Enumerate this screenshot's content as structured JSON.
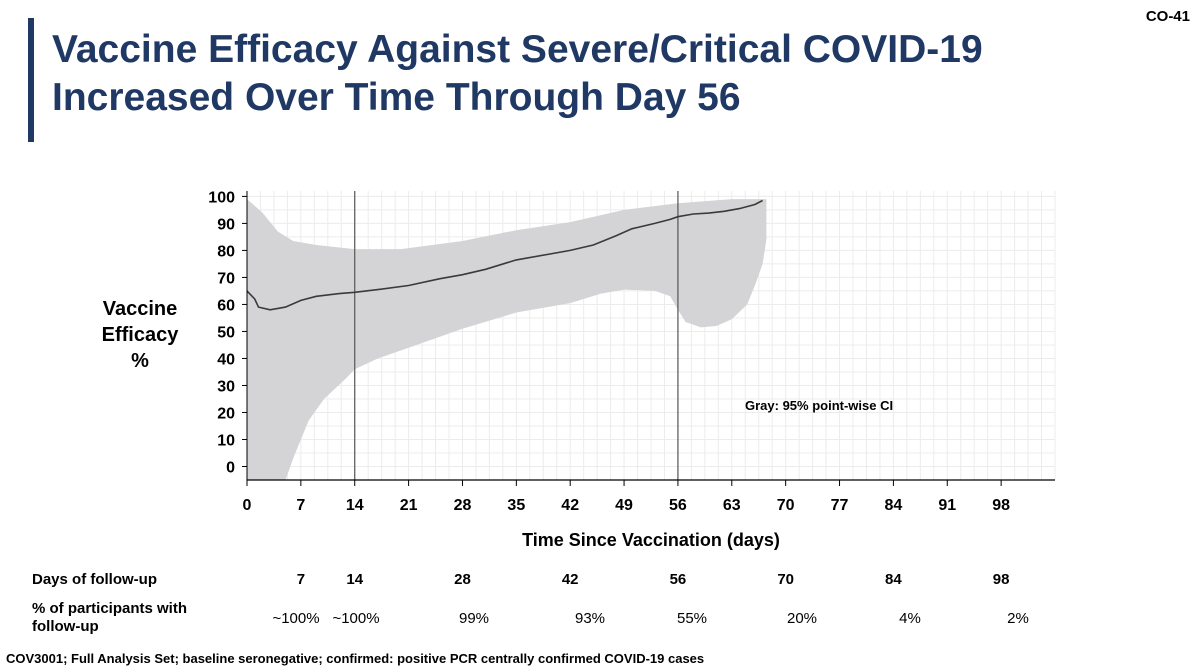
{
  "slide_id": "CO-41",
  "title_lines": [
    "Vaccine Efficacy Against Severe/Critical COVID-19",
    "Increased Over Time Through Day 56"
  ],
  "y_axis_label_lines": [
    "Vaccine",
    "Efficacy",
    "%"
  ],
  "follow_up_table": {
    "days_label": "Days of follow-up",
    "pct_label_lines": [
      "% of participants with",
      "follow-up"
    ],
    "days": [
      "7",
      "14",
      "28",
      "42",
      "56",
      "70",
      "84",
      "98"
    ],
    "pct": [
      "~100%",
      "~100%",
      "99%",
      "93%",
      "55%",
      "20%",
      "4%",
      "2%"
    ]
  },
  "footnote": "COV3001; Full Analysis Set; baseline seronegative; confirmed: positive PCR centrally confirmed COVID-19 cases",
  "colors": {
    "title": "#1f3864",
    "ci_band": "#d4d4d6",
    "line": "#3a3a3a"
  },
  "chart_data": {
    "type": "line",
    "title": "",
    "xlabel": "Time Since Vaccination (days)",
    "ylabel": "Vaccine Efficacy %",
    "xlim": [
      0,
      105
    ],
    "ylim": [
      -5,
      102
    ],
    "x_ticks": [
      0,
      7,
      14,
      21,
      28,
      35,
      42,
      49,
      56,
      63,
      70,
      77,
      84,
      91,
      98
    ],
    "y_ticks": [
      0,
      10,
      20,
      30,
      40,
      50,
      60,
      70,
      80,
      90,
      100
    ],
    "grid": true,
    "reference_lines_x": [
      14,
      56
    ],
    "annotation": "Gray: 95% point-wise CI",
    "series": [
      {
        "kind": "estimate",
        "points": [
          [
            0,
            65
          ],
          [
            1,
            62
          ],
          [
            1.5,
            59
          ],
          [
            3,
            58
          ],
          [
            5,
            59
          ],
          [
            7,
            61.5
          ],
          [
            9,
            63
          ],
          [
            12,
            64
          ],
          [
            14,
            64.5
          ],
          [
            17,
            65.5
          ],
          [
            21,
            67
          ],
          [
            25,
            69.5
          ],
          [
            28,
            71
          ],
          [
            31,
            73
          ],
          [
            35,
            76.5
          ],
          [
            39,
            78.5
          ],
          [
            42,
            80
          ],
          [
            45,
            82
          ],
          [
            48,
            85.5
          ],
          [
            50,
            88
          ],
          [
            53,
            90
          ],
          [
            55,
            91.5
          ],
          [
            56,
            92.5
          ],
          [
            58,
            93.5
          ],
          [
            60,
            93.8
          ],
          [
            62,
            94.5
          ],
          [
            64,
            95.5
          ],
          [
            66,
            97
          ],
          [
            67,
            98.5
          ]
        ]
      },
      {
        "kind": "ci_upper",
        "points": [
          [
            0,
            99
          ],
          [
            2,
            94
          ],
          [
            4,
            87
          ],
          [
            6,
            83.5
          ],
          [
            9,
            82
          ],
          [
            14,
            80.5
          ],
          [
            20,
            80.5
          ],
          [
            28,
            83.5
          ],
          [
            35,
            87.5
          ],
          [
            42,
            90.5
          ],
          [
            49,
            95
          ],
          [
            56,
            97.5
          ],
          [
            63,
            99
          ],
          [
            67,
            99
          ]
        ]
      },
      {
        "kind": "ci_lower",
        "points": [
          [
            0,
            -5
          ],
          [
            5,
            -5
          ],
          [
            6,
            3
          ],
          [
            8,
            17
          ],
          [
            10,
            25
          ],
          [
            13,
            33
          ],
          [
            14,
            36
          ],
          [
            17,
            40
          ],
          [
            21,
            44
          ],
          [
            28,
            51
          ],
          [
            35,
            57
          ],
          [
            42,
            60.5
          ],
          [
            46,
            64
          ],
          [
            49,
            65.5
          ],
          [
            53,
            65
          ],
          [
            55,
            63
          ],
          [
            56,
            58
          ],
          [
            57,
            53.5
          ],
          [
            59,
            51.5
          ],
          [
            61,
            52
          ],
          [
            63,
            54.5
          ],
          [
            65,
            60
          ],
          [
            66,
            67
          ],
          [
            67,
            75
          ],
          [
            67.5,
            84
          ],
          [
            67.5,
            99
          ]
        ]
      }
    ]
  }
}
